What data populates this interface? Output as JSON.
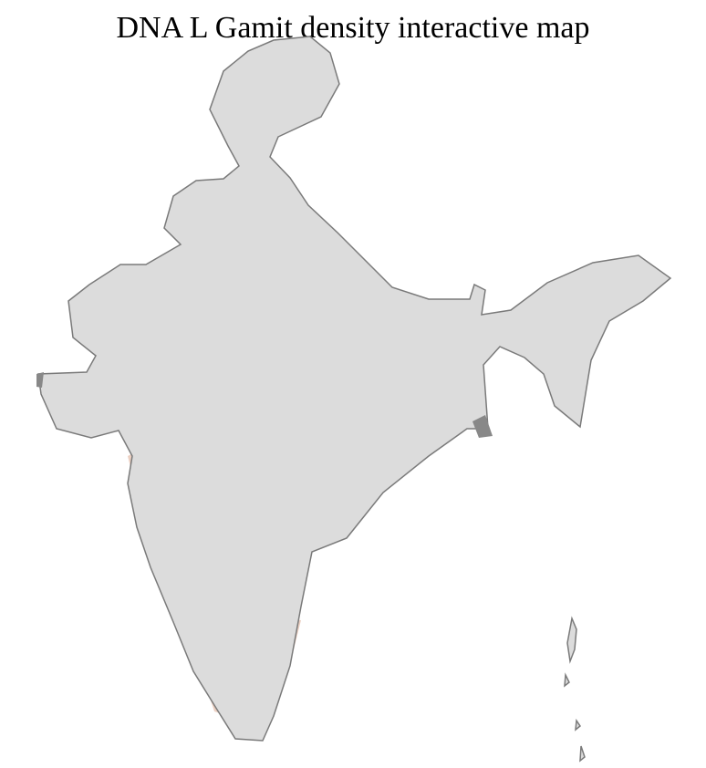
{
  "title": "DNA L Gamit density interactive map",
  "colors": {
    "land": "#dcdcdc",
    "border": "#7a7a7a",
    "district_border": "#ffffff",
    "low": "#ecd0c2",
    "mid": "#c98a68",
    "high": "#a6552e",
    "highest": "#7a2a0c"
  },
  "legend": null
}
